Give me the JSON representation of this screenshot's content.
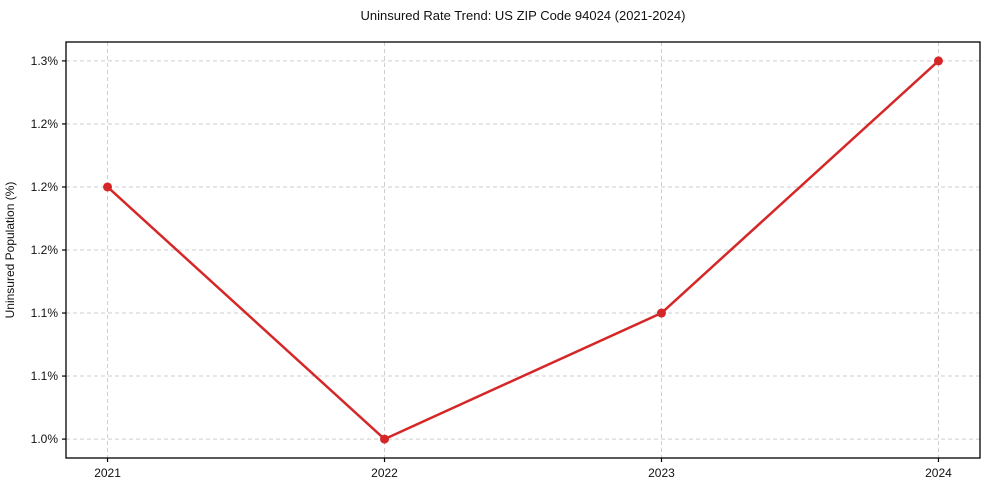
{
  "chart_data": {
    "type": "line",
    "title": "Uninsured Rate Trend: US ZIP Code 94024 (2021-2024)",
    "xlabel": "",
    "ylabel": "Uninsured Population (%)",
    "x": [
      2021,
      2022,
      2023,
      2024
    ],
    "values": [
      1.2,
      1.0,
      1.1,
      1.3
    ],
    "x_tick_labels": [
      "2021",
      "2022",
      "2023",
      "2024"
    ],
    "y_ticks": [
      1.0,
      1.05,
      1.1,
      1.15,
      1.2,
      1.25,
      1.3
    ],
    "y_tick_labels": [
      "1.0%",
      "1.1%",
      "1.1%",
      "1.2%",
      "1.2%",
      "1.2%",
      "1.3%"
    ],
    "xlim": [
      2020.85,
      2024.15
    ],
    "ylim": [
      0.985,
      1.315
    ],
    "grid": true,
    "grid_style": "dashed",
    "legend": "none",
    "colors": {
      "line": "#d62728",
      "marker": "#d62728",
      "grid": "#cdcdcd",
      "spine": "#000000",
      "text": "#111111",
      "background": "#ffffff"
    }
  }
}
